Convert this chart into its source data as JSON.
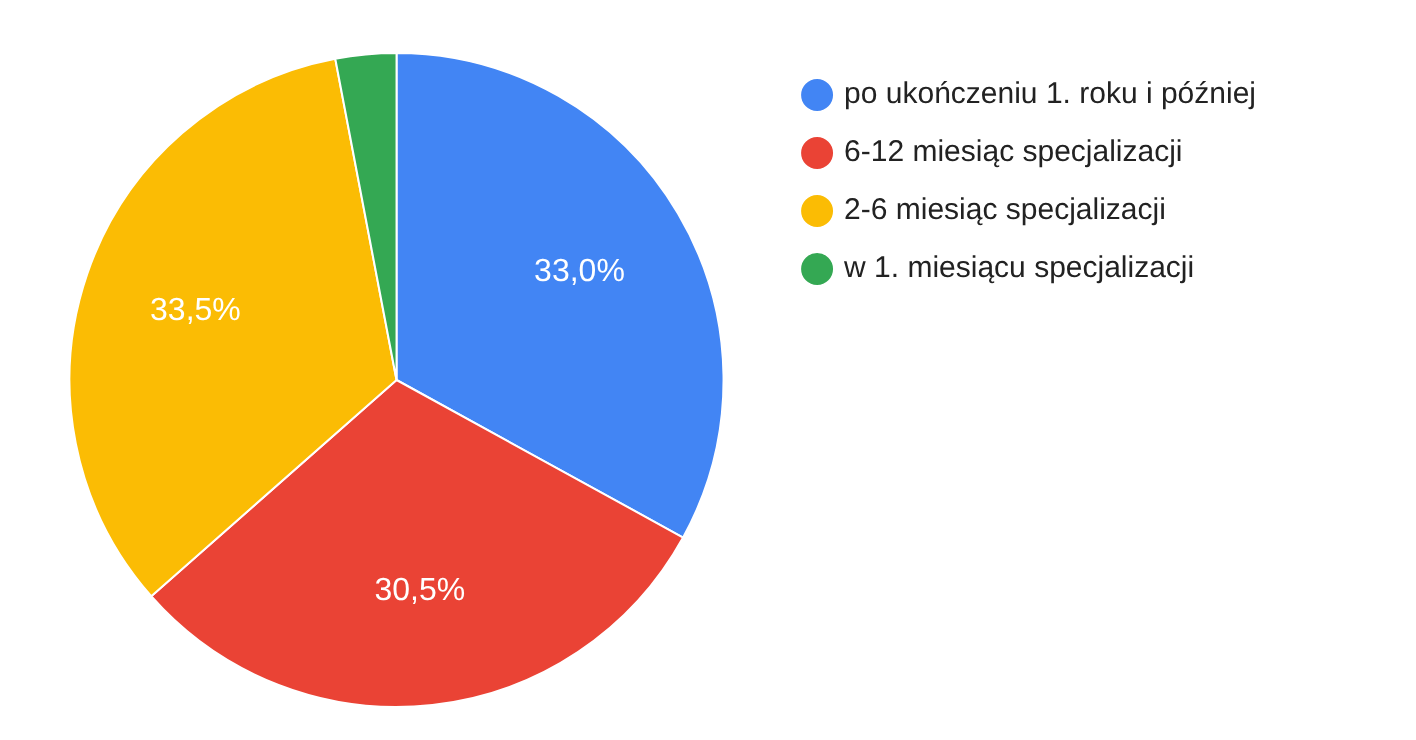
{
  "chart_data": {
    "type": "pie",
    "categories": [
      "po ukończeniu 1. roku i później",
      "6-12 miesiąc specjalizacji",
      "2-6 miesiąc specjalizacji",
      "w 1. miesiącu specjalizacji"
    ],
    "values": [
      33.0,
      30.5,
      33.5,
      3.0
    ],
    "colors": [
      "#4285f4",
      "#ea4335",
      "#fbbc04",
      "#34a853"
    ],
    "value_labels": [
      "33,0%",
      "30,5%",
      "33,5%",
      null
    ],
    "legend": "right"
  }
}
